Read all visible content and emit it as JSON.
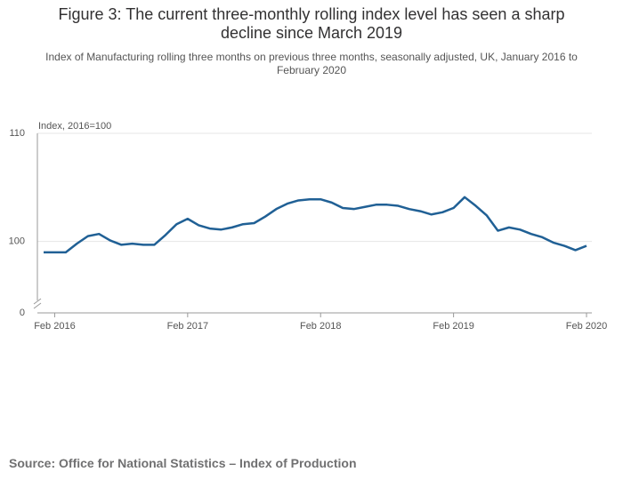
{
  "chart_data": {
    "type": "line",
    "title": "Figure 3: The current three-monthly rolling index level has seen a sharp decline since March 2019",
    "subtitle": "Index of Manufacturing rolling three months on previous three months, seasonally adjusted, UK, January 2016 to February 2020",
    "y_label": "Index, 2016=100",
    "source": "Source: Office for National Statistics – Index of Production",
    "x": [
      "2016-01",
      "2016-02",
      "2016-03",
      "2016-04",
      "2016-05",
      "2016-06",
      "2016-07",
      "2016-08",
      "2016-09",
      "2016-10",
      "2016-11",
      "2016-12",
      "2017-01",
      "2017-02",
      "2017-03",
      "2017-04",
      "2017-05",
      "2017-06",
      "2017-07",
      "2017-08",
      "2017-09",
      "2017-10",
      "2017-11",
      "2017-12",
      "2018-01",
      "2018-02",
      "2018-03",
      "2018-04",
      "2018-05",
      "2018-06",
      "2018-07",
      "2018-08",
      "2018-09",
      "2018-10",
      "2018-11",
      "2018-12",
      "2019-01",
      "2019-02",
      "2019-03",
      "2019-04",
      "2019-05",
      "2019-06",
      "2019-07",
      "2019-08",
      "2019-09",
      "2019-10",
      "2019-11",
      "2019-12",
      "2020-01",
      "2020-02"
    ],
    "series": [
      {
        "name": "Index of Manufacturing",
        "color": "#206095",
        "values": [
          99.0,
          99.0,
          99.0,
          99.8,
          100.5,
          100.7,
          100.1,
          99.7,
          99.8,
          99.7,
          99.7,
          100.6,
          101.6,
          102.1,
          101.5,
          101.2,
          101.1,
          101.3,
          101.6,
          101.7,
          102.3,
          103.0,
          103.5,
          103.8,
          103.9,
          103.9,
          103.6,
          103.1,
          103.0,
          103.2,
          103.4,
          103.4,
          103.3,
          103.0,
          102.8,
          102.5,
          102.7,
          103.1,
          104.1,
          103.3,
          102.4,
          101.0,
          101.3,
          101.1,
          100.7,
          100.4,
          99.9,
          99.6,
          99.2,
          99.6
        ]
      }
    ],
    "xlim": [
      "2016-01",
      "2020-02"
    ],
    "xticks": [
      {
        "value": "2016-02",
        "label": "Feb 2016"
      },
      {
        "value": "2017-02",
        "label": "Feb 2017"
      },
      {
        "value": "2018-02",
        "label": "Feb 2018"
      },
      {
        "value": "2019-02",
        "label": "Feb 2019"
      },
      {
        "value": "2020-02",
        "label": "Feb 2020"
      }
    ],
    "ylim": [
      0,
      110
    ],
    "y_break": [
      0,
      93.4
    ],
    "yticks": [
      0,
      100,
      110
    ],
    "grid": true
  }
}
